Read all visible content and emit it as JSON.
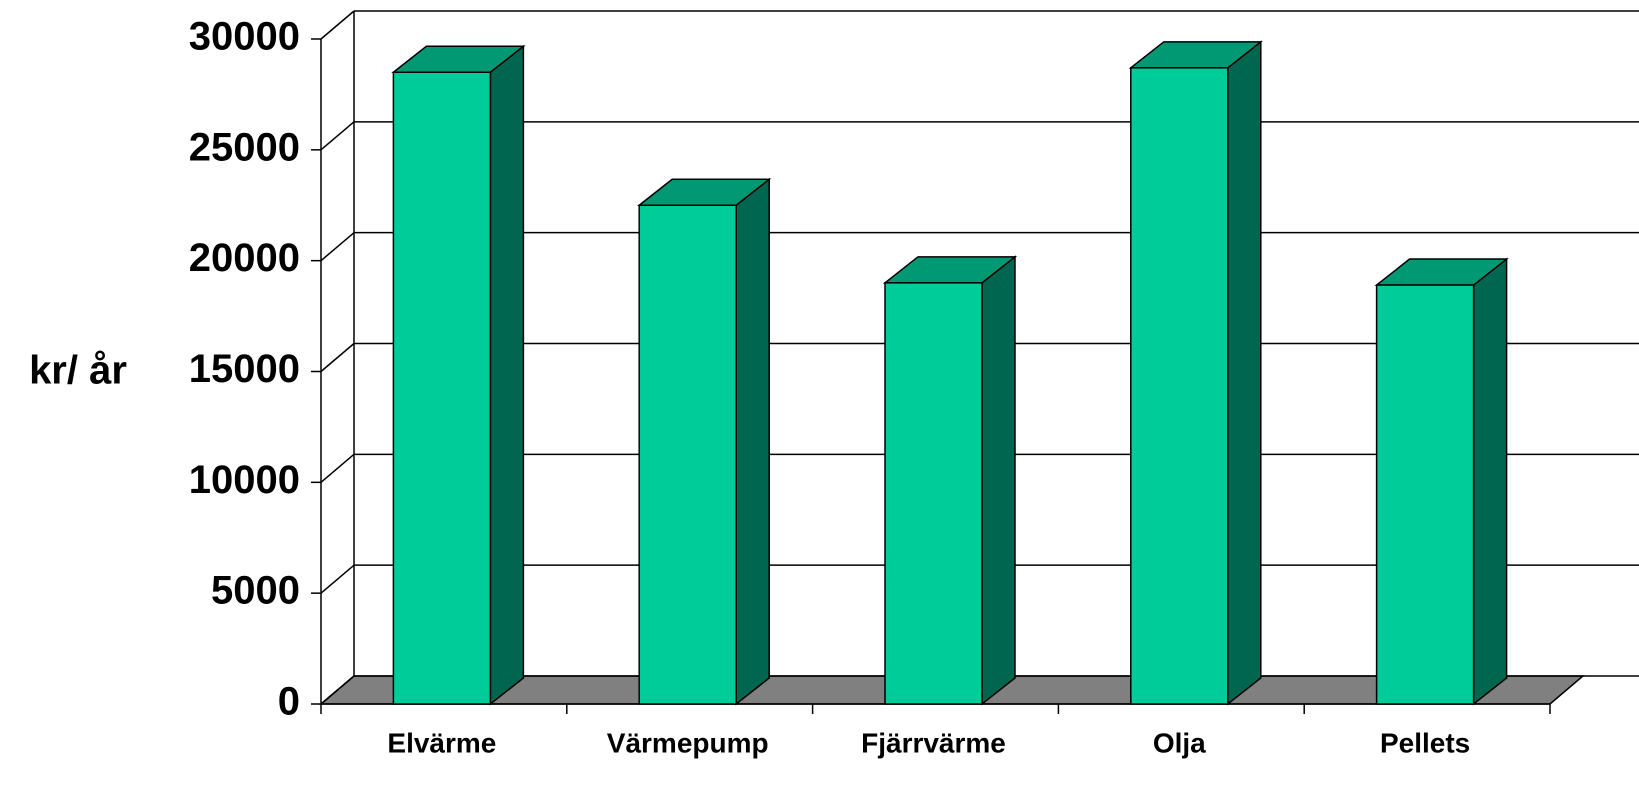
{
  "chart_data": {
    "type": "bar3d",
    "y_label": "kr/ år",
    "categories": [
      "Elvärme",
      "Värmepump",
      "Fjärrvärme",
      "Olja",
      "Pellets"
    ],
    "values": [
      28500,
      22500,
      19000,
      28700,
      18900
    ],
    "color": "#00cc99",
    "top_color": "#009973",
    "side_color": "#006650",
    "floor_color": "#808080",
    "ylim": [
      0,
      30000
    ],
    "yticks": [
      0,
      5000,
      10000,
      15000,
      20000,
      25000,
      30000
    ],
    "grid": true
  }
}
